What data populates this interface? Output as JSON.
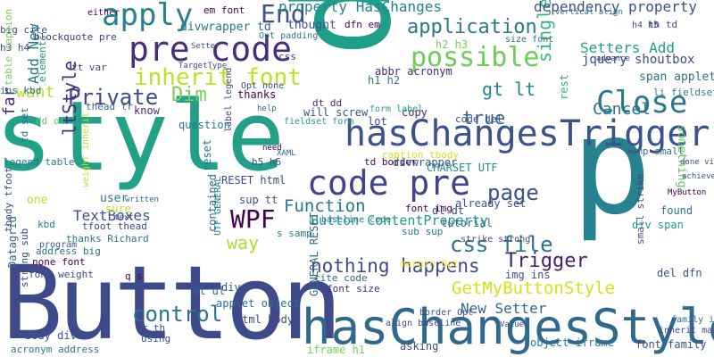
{
  "background": "#ffffff",
  "words": [
    {
      "text": "style",
      "color": "#22a088"
    },
    {
      "text": "Button",
      "color": "#3e4a89"
    },
    {
      "text": "p",
      "color": "#1f9e89"
    },
    {
      "text": "p",
      "color": "#26828e"
    },
    {
      "text": "hasChangesStyle",
      "color": "#31688e"
    },
    {
      "text": "hasChangesTrigger",
      "color": "#3b528b"
    },
    {
      "text": "pre code",
      "color": "#472d7b"
    },
    {
      "text": "code pre",
      "color": "#414487"
    },
    {
      "text": "apply",
      "color": "#26828e"
    },
    {
      "text": "End",
      "color": "#3b528b"
    },
    {
      "text": "Close",
      "color": "#2a788e"
    },
    {
      "text": "possible",
      "color": "#6ccd5a"
    },
    {
      "text": "application",
      "color": "#2a788e"
    },
    {
      "text": "inherit font",
      "color": "#c2df23"
    },
    {
      "text": "Private",
      "color": "#3e4a89"
    },
    {
      "text": "Dim",
      "color": "#7ad151"
    },
    {
      "text": "WPF",
      "color": "#440154"
    },
    {
      "text": "page",
      "color": "#3b528b"
    },
    {
      "text": "css file",
      "color": "#2c728e"
    },
    {
      "text": "Trigger",
      "color": "#481f70"
    },
    {
      "text": "control",
      "color": "#2c728e"
    },
    {
      "text": "nothing happens",
      "color": "#3e4a89"
    },
    {
      "text": "GetMyButtonStyle",
      "color": "#d2e21b"
    },
    {
      "text": "gt lt",
      "color": "#25848e"
    },
    {
      "text": "single",
      "color": "#35b779"
    },
    {
      "text": "Cancel",
      "color": "#2c728e"
    },
    {
      "text": "true",
      "color": "#31688e"
    },
    {
      "text": "Function",
      "color": "#2a788e"
    },
    {
      "text": "way",
      "color": "#addc30"
    },
    {
      "text": "ltStyle",
      "color": "#472d7b"
    },
    {
      "text": "dependency property",
      "color": "#3b528b"
    },
    {
      "text": "property HasChanges",
      "color": "#25848e"
    },
    {
      "text": "Setters Add",
      "color": "#1fa187"
    },
    {
      "text": "jquery shoutbox",
      "color": "#3e4a89"
    },
    {
      "text": "Button ContentProperty",
      "color": "#1f9e89"
    },
    {
      "text": "TextBoxes",
      "color": "#3b528b"
    },
    {
      "text": "New Setter",
      "color": "#31688e"
    },
    {
      "text": "Add New",
      "color": "#2a788e"
    },
    {
      "text": "far",
      "color": "#482878"
    },
    {
      "text": "em font",
      "color": "#440154"
    },
    {
      "text": "blockquote pre",
      "color": "#443983"
    },
    {
      "text": "divwrapper td",
      "color": "#2c728e"
    },
    {
      "text": "thought",
      "color": "#3b528b"
    },
    {
      "text": "dfn em",
      "color": "#440154"
    },
    {
      "text": "h2 h3",
      "color": "#7ad151"
    },
    {
      "text": "span applet",
      "color": "#2c728e"
    },
    {
      "text": "li fieldset",
      "color": "#25848e"
    },
    {
      "text": "abbr acronym",
      "color": "#482878"
    },
    {
      "text": "h1 h2",
      "color": "#2a788e"
    },
    {
      "text": "thanks",
      "color": "#440154"
    },
    {
      "text": "know",
      "color": "#472d7b"
    },
    {
      "text": "question",
      "color": "#2a788e"
    },
    {
      "text": "will screw",
      "color": "#3b528b"
    },
    {
      "text": "fieldset form",
      "color": "#1f9e89"
    },
    {
      "text": "lot",
      "color": "#3e4a89"
    },
    {
      "text": "copy",
      "color": "#472d7b"
    },
    {
      "text": "dt dd",
      "color": "#482878"
    },
    {
      "text": "code del",
      "color": "#3e4a89"
    },
    {
      "text": "rest",
      "color": "#35b779"
    },
    {
      "text": "something",
      "color": "#5ec962"
    },
    {
      "text": "want",
      "color": "#bddf26"
    },
    {
      "text": "RESET html",
      "color": "#3e4a89"
    },
    {
      "text": "reset",
      "color": "#2a788e"
    },
    {
      "text": "already set",
      "color": "#3b528b"
    },
    {
      "text": "CHARSET UTF",
      "color": "#21918c"
    },
    {
      "text": "td border",
      "color": "#440154"
    },
    {
      "text": "divwrapper",
      "color": "#3b528b"
    },
    {
      "text": "found",
      "color": "#2c728e"
    },
    {
      "text": "div span",
      "color": "#1f9e89"
    },
    {
      "text": "tutorial",
      "color": "#31688e"
    },
    {
      "text": "dl dt",
      "color": "#3e4a89"
    },
    {
      "text": "sub sup",
      "color": "#2a788e"
    },
    {
      "text": "cite code",
      "color": "#31688e"
    },
    {
      "text": "font size",
      "color": "#472d7b"
    },
    {
      "text": "margin Opt",
      "color": "#fde725"
    },
    {
      "text": "strike strong",
      "color": "#3e4a89"
    },
    {
      "text": "caption tbody",
      "color": "#d8e219"
    },
    {
      "text": "h5 h6",
      "color": "#3e4a89"
    },
    {
      "text": "font img",
      "color": "#440154"
    },
    {
      "text": "applet object",
      "color": "#2c728e"
    },
    {
      "text": "html body",
      "color": "#3e4a89"
    },
    {
      "text": "body div",
      "color": "#3b528b"
    },
    {
      "text": "object iframe",
      "color": "#2a788e"
    },
    {
      "text": "font family",
      "color": "#3b528b"
    },
    {
      "text": "iframe h1",
      "color": "#7ad151"
    },
    {
      "text": "asking",
      "color": "#3e4a89"
    },
    {
      "text": "using",
      "color": "#3b528b"
    },
    {
      "text": "acronym address",
      "color": "#2a788e"
    },
    {
      "text": "font weight",
      "color": "#3e4a89"
    },
    {
      "text": "address big",
      "color": "#2c728e"
    },
    {
      "text": "Datagrid",
      "color": "#31688e"
    },
    {
      "text": "strong sub",
      "color": "#3e4a89"
    },
    {
      "text": "tbody tfoot",
      "color": "#3b528b"
    },
    {
      "text": "legend table",
      "color": "#2a788e"
    },
    {
      "text": "dd ol",
      "color": "#5ec962"
    },
    {
      "text": "td set",
      "color": "#2c728e"
    },
    {
      "text": "ins kbd",
      "color": "#2c728e"
    },
    {
      "text": "tt var",
      "color": "#3e4a89"
    },
    {
      "text": "h3 h4",
      "color": "#3e4a89"
    },
    {
      "text": "elements",
      "color": "#21918c"
    },
    {
      "text": "big cite",
      "color": "#3b528b"
    },
    {
      "text": "table caption",
      "color": "#7ad151"
    },
    {
      "text": "thead tr",
      "color": "#31688e"
    },
    {
      "text": "s samp",
      "color": "#2a788e"
    },
    {
      "text": "one",
      "color": "#bddf26"
    },
    {
      "text": "user",
      "color": "#2c728e"
    },
    {
      "text": "sure",
      "color": "#bddf26"
    },
    {
      "text": "kbd",
      "color": "#2a788e"
    },
    {
      "text": "tfoot thead",
      "color": "#3e4a89"
    },
    {
      "text": "thanks Richard",
      "color": "#2c728e"
    },
    {
      "text": "none font",
      "color": "#440154"
    },
    {
      "text": "program",
      "color": "#3b528b"
    },
    {
      "text": "ol ul",
      "color": "#31688e"
    },
    {
      "text": "div",
      "color": "#3b528b"
    },
    {
      "text": "sup tt",
      "color": "#3b528b"
    },
    {
      "text": "contained",
      "color": "#2c728e"
    },
    {
      "text": "tr th",
      "color": "#3e4a89"
    },
    {
      "text": "q s",
      "color": "#440154"
    },
    {
      "text": "GENERAL RESET",
      "color": "#31688e"
    },
    {
      "text": "img ins",
      "color": "#3b528b"
    },
    {
      "text": "del dfn",
      "color": "#3b528b"
    },
    {
      "text": "small strike",
      "color": "#3e4a89"
    },
    {
      "text": "samp small",
      "color": "#2c728e"
    },
    {
      "text": "th td",
      "color": "#3e4a89"
    },
    {
      "text": "h4 h5",
      "color": "#3e4a89"
    },
    {
      "text": "Opt padding",
      "color": "#2a788e"
    },
    {
      "text": "Opt none",
      "color": "#3e4a89"
    },
    {
      "text": "size font",
      "color": "#2c728e"
    },
    {
      "text": "label legend",
      "color": "#3e4a89"
    },
    {
      "text": "form label",
      "color": "#1f9e89"
    },
    {
      "text": "css",
      "color": "#3e4a89"
    },
    {
      "text": "baseline code",
      "color": "#2a788e"
    },
    {
      "text": "align baseline",
      "color": "#3e4a89"
    },
    {
      "text": "border Opt",
      "color": "#3b528b"
    },
    {
      "text": "either",
      "color": "#440154"
    },
    {
      "text": "vertical align",
      "color": "#2c728e"
    },
    {
      "text": "Setter",
      "color": "#3b528b"
    },
    {
      "text": "TargetType",
      "color": "#3e4a89"
    },
    {
      "text": "inherit margin",
      "color": "#3e4a89"
    },
    {
      "text": "family inherit",
      "color": "#2c728e"
    },
    {
      "text": "weight inherit",
      "color": "#bddf26"
    },
    {
      "text": "UTF GENERAL",
      "color": "#2a788e"
    },
    {
      "text": "help",
      "color": "#31688e"
    },
    {
      "text": "text",
      "color": "#3b528b"
    },
    {
      "text": "need",
      "color": "#440154"
    },
    {
      "text": "XAML",
      "color": "#2c728e"
    },
    {
      "text": "advance",
      "color": "#3e4a89"
    },
    {
      "text": "achieve",
      "color": "#3b528b"
    },
    {
      "text": "MyButton",
      "color": "#440154"
    },
    {
      "text": "written",
      "color": "#31688e"
    },
    {
      "text": "Value",
      "color": "#3b528b"
    },
    {
      "text": "done via",
      "color": "#3e4a89"
    }
  ]
}
